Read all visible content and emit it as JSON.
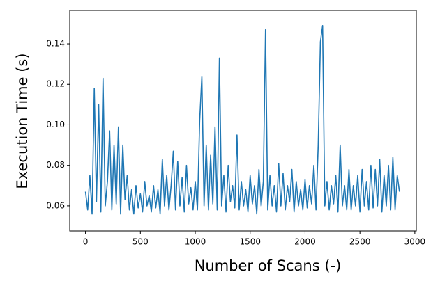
{
  "chart_data": {
    "type": "line",
    "xlabel": "Number of Scans (-)",
    "ylabel": "Execution Time (s)",
    "x": [
      0,
      20,
      40,
      60,
      80,
      100,
      120,
      140,
      160,
      180,
      200,
      220,
      240,
      260,
      280,
      300,
      320,
      340,
      360,
      380,
      400,
      420,
      440,
      460,
      480,
      500,
      520,
      540,
      560,
      580,
      600,
      620,
      640,
      660,
      680,
      700,
      720,
      740,
      760,
      780,
      800,
      820,
      840,
      860,
      880,
      900,
      920,
      940,
      960,
      980,
      1000,
      1020,
      1040,
      1060,
      1080,
      1100,
      1120,
      1140,
      1160,
      1180,
      1200,
      1220,
      1240,
      1260,
      1280,
      1300,
      1320,
      1340,
      1360,
      1380,
      1400,
      1420,
      1440,
      1460,
      1480,
      1500,
      1520,
      1540,
      1560,
      1580,
      1600,
      1620,
      1640,
      1660,
      1680,
      1700,
      1720,
      1740,
      1760,
      1780,
      1800,
      1820,
      1840,
      1860,
      1880,
      1900,
      1920,
      1940,
      1960,
      1980,
      2000,
      2020,
      2040,
      2060,
      2080,
      2100,
      2120,
      2140,
      2160,
      2180,
      2200,
      2220,
      2240,
      2260,
      2280,
      2300,
      2320,
      2340,
      2360,
      2380,
      2400,
      2420,
      2440,
      2460,
      2480,
      2500,
      2520,
      2540,
      2560,
      2580,
      2600,
      2620,
      2640,
      2660,
      2680,
      2700,
      2720,
      2740,
      2760,
      2780,
      2800,
      2820,
      2840,
      2860
    ],
    "series": [
      {
        "color": "#1f77b4",
        "values": [
          0.067,
          0.058,
          0.075,
          0.056,
          0.118,
          0.062,
          0.11,
          0.057,
          0.123,
          0.06,
          0.072,
          0.097,
          0.058,
          0.09,
          0.061,
          0.099,
          0.056,
          0.09,
          0.063,
          0.075,
          0.058,
          0.068,
          0.056,
          0.07,
          0.059,
          0.066,
          0.057,
          0.072,
          0.06,
          0.065,
          0.057,
          0.07,
          0.059,
          0.068,
          0.056,
          0.083,
          0.06,
          0.075,
          0.058,
          0.07,
          0.087,
          0.058,
          0.082,
          0.06,
          0.074,
          0.057,
          0.08,
          0.061,
          0.069,
          0.058,
          0.072,
          0.058,
          0.102,
          0.124,
          0.06,
          0.09,
          0.058,
          0.085,
          0.061,
          0.099,
          0.058,
          0.133,
          0.06,
          0.075,
          0.057,
          0.08,
          0.062,
          0.07,
          0.059,
          0.095,
          0.058,
          0.072,
          0.06,
          0.068,
          0.057,
          0.075,
          0.061,
          0.07,
          0.056,
          0.078,
          0.06,
          0.072,
          0.147,
          0.058,
          0.075,
          0.06,
          0.07,
          0.057,
          0.081,
          0.06,
          0.076,
          0.058,
          0.07,
          0.062,
          0.078,
          0.057,
          0.072,
          0.06,
          0.068,
          0.058,
          0.073,
          0.059,
          0.07,
          0.061,
          0.08,
          0.058,
          0.09,
          0.141,
          0.149,
          0.06,
          0.072,
          0.058,
          0.07,
          0.061,
          0.075,
          0.057,
          0.09,
          0.06,
          0.07,
          0.058,
          0.078,
          0.058,
          0.07,
          0.06,
          0.075,
          0.057,
          0.078,
          0.06,
          0.072,
          0.058,
          0.08,
          0.059,
          0.078,
          0.06,
          0.083,
          0.057,
          0.075,
          0.06,
          0.08,
          0.058,
          0.084,
          0.058,
          0.075,
          0.067
        ]
      }
    ],
    "xlim": [
      -143.5,
      3013.5
    ],
    "ylim": [
      0.0476,
      0.1565
    ],
    "xticks": [
      0,
      500,
      1000,
      1500,
      2000,
      2500,
      3000
    ],
    "yticks": [
      0.06,
      0.08,
      {
        "value": 0.1,
        "label": "0.10"
      },
      0.12,
      0.14
    ]
  }
}
